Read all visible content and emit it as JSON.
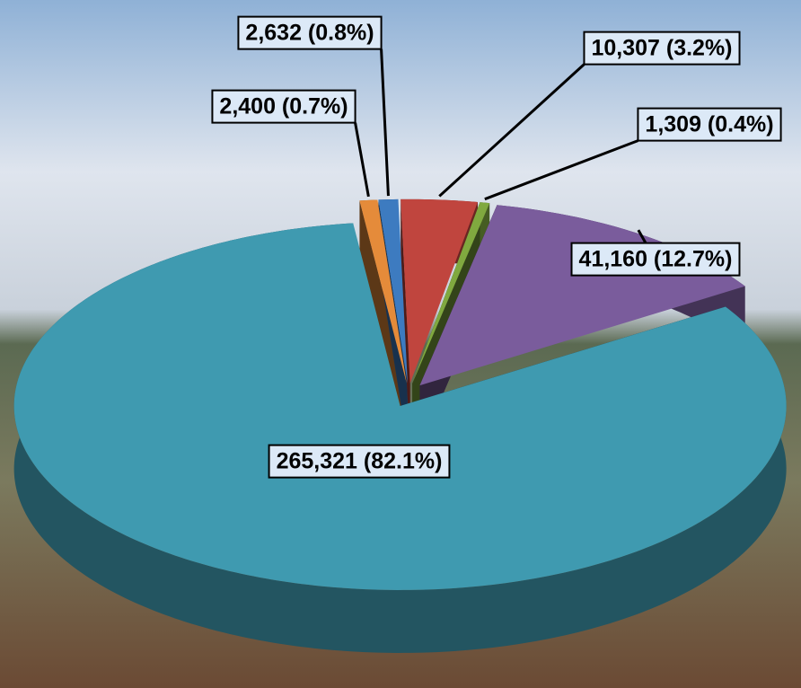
{
  "chart_data": {
    "type": "pie",
    "values": [
      2400,
      2632,
      10307,
      1309,
      41160,
      265321
    ],
    "value_labels": [
      "2,400 (0.7%)",
      "2,632 (0.8%)",
      "10,307 (3.2%)",
      "1,309 (0.4%)",
      "41,160 (12.7%)",
      "265,321 (82.1%)"
    ],
    "colors": [
      "#e58b3a",
      "#3d7bc0",
      "#c0453e",
      "#80a93f",
      "#7a5c9c",
      "#3f9ab0"
    ]
  }
}
